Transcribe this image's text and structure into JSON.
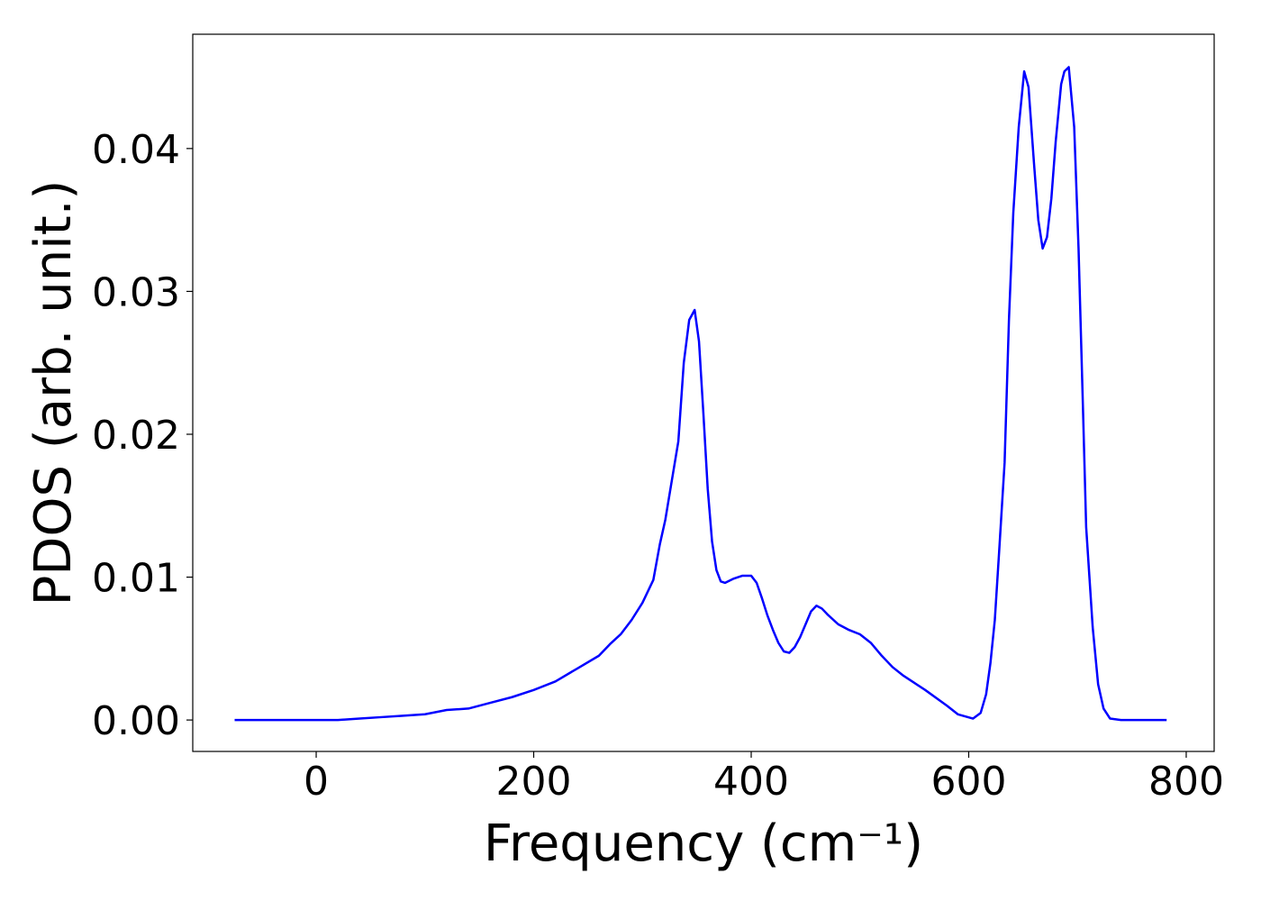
{
  "chart_data": {
    "type": "line",
    "xlabel": "Frequency (cm⁻¹)",
    "ylabel": "PDOS (arb. unit.)",
    "color": "#0000ff",
    "x": [
      -75,
      0,
      20,
      40,
      60,
      80,
      100,
      120,
      140,
      160,
      180,
      200,
      220,
      240,
      260,
      270,
      280,
      290,
      300,
      310,
      316,
      321,
      326,
      333,
      338,
      343,
      348,
      352,
      356,
      360,
      364,
      368,
      372,
      376,
      384,
      392,
      400,
      405,
      410,
      415,
      420,
      425,
      430,
      435,
      440,
      445,
      450,
      455,
      460,
      465,
      470,
      480,
      490,
      500,
      510,
      520,
      530,
      540,
      560,
      580,
      590,
      604,
      611,
      616,
      620,
      624,
      628,
      633,
      637,
      641,
      646,
      651,
      655,
      660,
      664,
      668,
      672,
      676,
      680,
      685,
      688,
      692,
      697,
      701,
      705,
      708,
      714,
      719,
      724,
      730,
      740,
      782
    ],
    "values": [
      0,
      0,
      0,
      0.0001,
      0.0002,
      0.0003,
      0.0004,
      0.0007,
      0.0008,
      0.0012,
      0.0016,
      0.0021,
      0.0027,
      0.0036,
      0.0045,
      0.0053,
      0.006,
      0.007,
      0.0082,
      0.0098,
      0.0123,
      0.014,
      0.0163,
      0.0195,
      0.025,
      0.028,
      0.0287,
      0.0265,
      0.0215,
      0.0162,
      0.0125,
      0.0105,
      0.0097,
      0.0096,
      0.0099,
      0.0101,
      0.0101,
      0.0096,
      0.0085,
      0.0073,
      0.0063,
      0.0054,
      0.0048,
      0.0047,
      0.0051,
      0.0058,
      0.0067,
      0.0076,
      0.008,
      0.0078,
      0.0074,
      0.0067,
      0.0063,
      0.006,
      0.0054,
      0.0045,
      0.0037,
      0.0031,
      0.0021,
      0.001,
      0.0004,
      0.0001,
      0.0005,
      0.0018,
      0.004,
      0.007,
      0.0118,
      0.018,
      0.028,
      0.0355,
      0.0415,
      0.0454,
      0.0443,
      0.039,
      0.035,
      0.033,
      0.0338,
      0.0365,
      0.0405,
      0.0445,
      0.0454,
      0.0457,
      0.0415,
      0.033,
      0.022,
      0.0135,
      0.0065,
      0.0025,
      0.0008,
      0.0001,
      0,
      0
    ],
    "xlim": [
      -113.5,
      825.7
    ],
    "ylim": [
      -0.0022,
      0.048
    ],
    "xticks": [
      0,
      200,
      400,
      600,
      800
    ],
    "yticks": [
      {
        "value": 0,
        "label": "0.00"
      },
      0.01,
      0.02,
      0.03,
      0.04
    ],
    "grid": false
  }
}
